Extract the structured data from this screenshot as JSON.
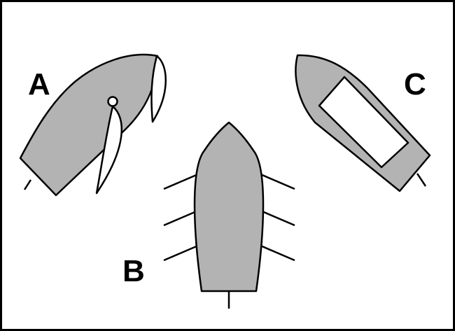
{
  "labels": {
    "a": "A",
    "b": "B",
    "c": "C"
  },
  "colors": {
    "hull": "#b3b3b3",
    "outline": "#000000",
    "background": "#ffffff",
    "cabin": "#ffffff"
  }
}
